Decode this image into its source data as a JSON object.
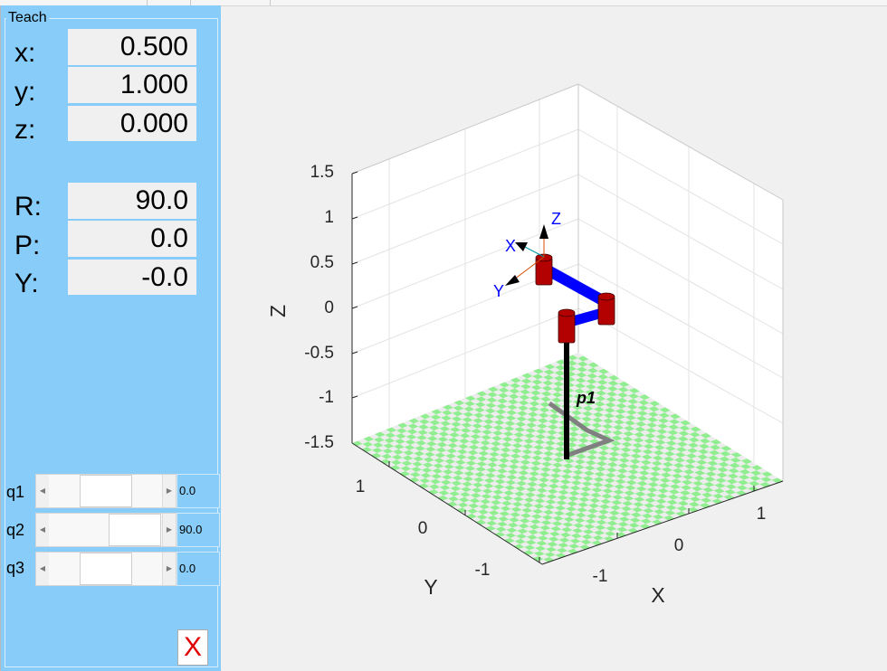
{
  "teach": {
    "title": "Teach",
    "pose": [
      {
        "label": "x:",
        "value": "0.500"
      },
      {
        "label": "y:",
        "value": "1.000"
      },
      {
        "label": "z:",
        "value": "0.000"
      },
      {
        "label": "R:",
        "value": "90.0"
      },
      {
        "label": "P:",
        "value": "0.0"
      },
      {
        "label": "Y:",
        "value": "-0.0"
      }
    ],
    "joints": [
      {
        "label": "q1",
        "value": "0.0",
        "slider_fraction": 0.5
      },
      {
        "label": "q2",
        "value": "90.0",
        "slider_fraction": 0.75
      },
      {
        "label": "q3",
        "value": "0.0",
        "slider_fraction": 0.5
      }
    ],
    "close_label": "X"
  },
  "plot": {
    "z_ticks": [
      "1.5",
      "1",
      "0.5",
      "0",
      "-0.5",
      "-1",
      "-1.5"
    ],
    "y_ticks": [
      "1",
      "0",
      "-1"
    ],
    "x_ticks": [
      "1",
      "0",
      "-1"
    ],
    "x_label": "X",
    "y_label": "Y",
    "z_label": "Z",
    "robot_name": "p1",
    "frame_labels": {
      "x": "X",
      "y": "Y",
      "z": "Z"
    },
    "colors": {
      "floor_light": "#90ee90",
      "floor_dark": "#ededed",
      "link": "#0000ff",
      "joint": "#b30000",
      "pedestal": "#000000",
      "shadow": "#808080",
      "frame_label": "#0000ff"
    }
  }
}
